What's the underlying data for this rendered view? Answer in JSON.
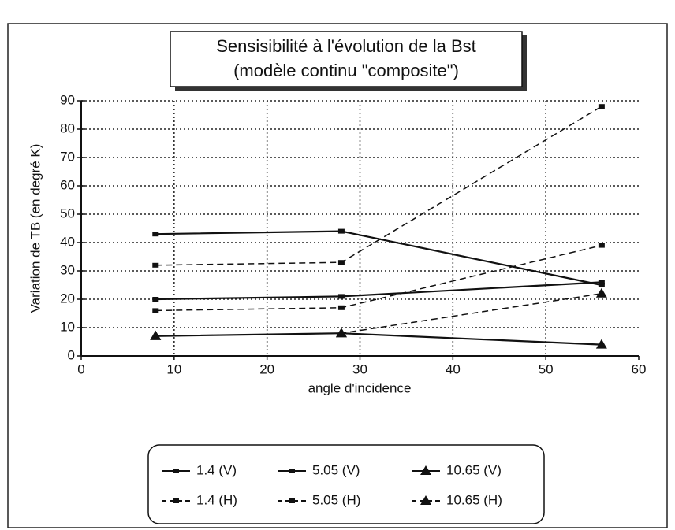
{
  "chart_data": {
    "type": "line",
    "title": "Sensisibilité à l'évolution de la Bst",
    "subtitle": "(modèle continu \"composite\")",
    "x_label": "angle d'incidence",
    "y_label": "Variation de TB (en degré K)",
    "x": [
      8,
      28,
      56
    ],
    "xlim": [
      0,
      60
    ],
    "xticks": [
      0,
      10,
      20,
      30,
      40,
      50,
      60
    ],
    "ylim": [
      0,
      90
    ],
    "yticks": [
      0,
      10,
      20,
      30,
      40,
      50,
      60,
      70,
      80,
      90
    ],
    "grid": true,
    "legend": "bottom",
    "series": [
      {
        "name": "1.4 (V)",
        "color": "#111111",
        "line_style": "solid",
        "marker": "square",
        "values": [
          20,
          21,
          26
        ]
      },
      {
        "name": "5.05 (V)",
        "color": "#111111",
        "line_style": "solid",
        "marker": "square",
        "values": [
          43,
          44,
          25
        ]
      },
      {
        "name": "10.65 (V)",
        "color": "#111111",
        "line_style": "solid",
        "marker": "triangle",
        "values": [
          7,
          8,
          4
        ]
      },
      {
        "name": "1.4 (H)",
        "color": "#111111",
        "line_style": "dashed",
        "marker": "square",
        "values": [
          16,
          17,
          39
        ]
      },
      {
        "name": "5.05 (H)",
        "color": "#111111",
        "line_style": "dashed",
        "marker": "square",
        "values": [
          32,
          33,
          88
        ]
      },
      {
        "name": "10.65 (H)",
        "color": "#111111",
        "line_style": "dashed",
        "marker": "triangle",
        "values": [
          7,
          8,
          22
        ]
      }
    ]
  }
}
